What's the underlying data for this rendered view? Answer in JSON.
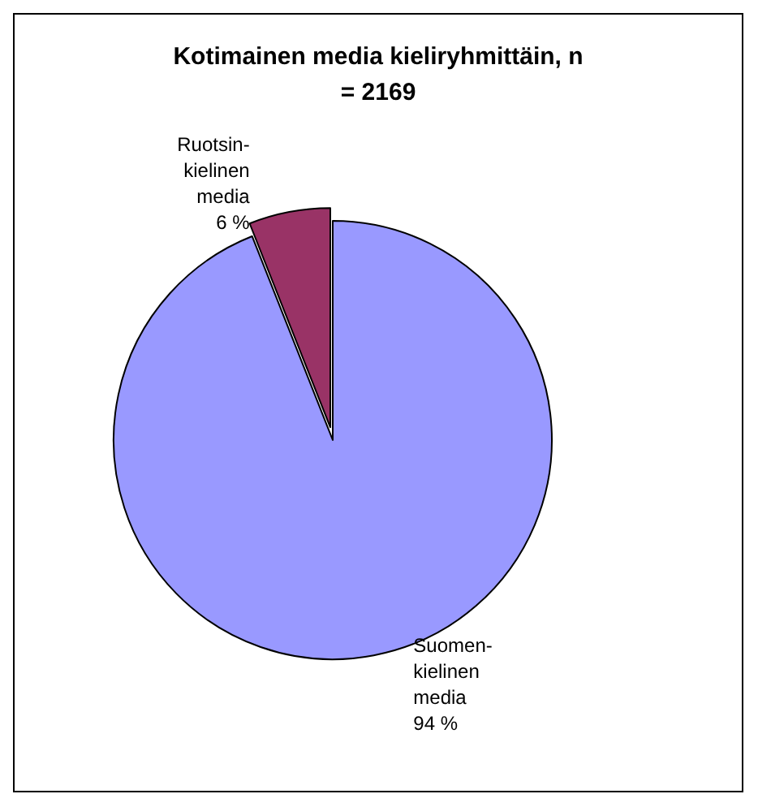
{
  "chart_data": {
    "type": "pie",
    "title": "Kotimainen media kieliryhmittäin, n\n= 2169",
    "categories": [
      "Suomen-\nkielinen\nmedia",
      "Ruotsin-\nkielinen\nmedia"
    ],
    "values": [
      94,
      6
    ],
    "value_labels": [
      "94 %",
      "6 %"
    ],
    "colors": [
      "#9999ff",
      "#993366"
    ],
    "legend": false
  }
}
